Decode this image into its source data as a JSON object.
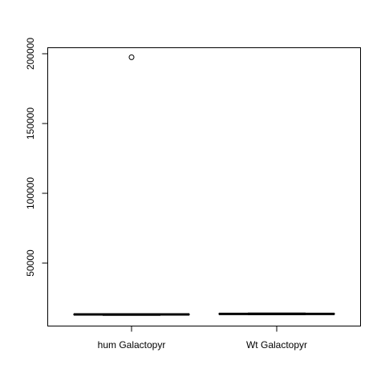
{
  "chart_data": {
    "type": "boxplot",
    "title": "",
    "xlabel": "",
    "ylabel": "",
    "categories": [
      "hum Galactopyr",
      "Wt Galactopyr"
    ],
    "y_ticks": [
      50000,
      100000,
      150000,
      200000
    ],
    "ylim": [
      0,
      205000
    ],
    "grid": false,
    "boxes": [
      {
        "category": "hum Galactopyr",
        "min": 12500,
        "q1": 12900,
        "median": 13200,
        "q3": 13500,
        "max": 13800,
        "outliers": [
          197500
        ]
      },
      {
        "category": "Wt Galactopyr",
        "min": 13000,
        "q1": 13300,
        "median": 13600,
        "q3": 13900,
        "max": 14200,
        "outliers": []
      }
    ]
  }
}
